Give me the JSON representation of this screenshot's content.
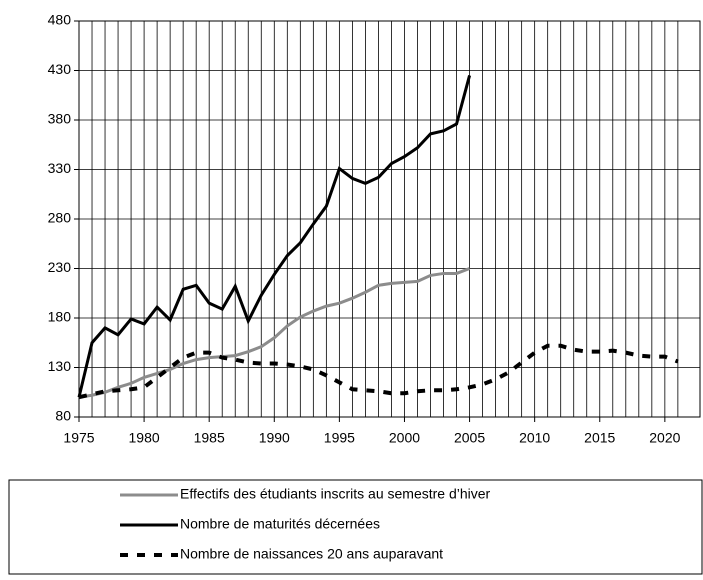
{
  "chart_data": {
    "type": "line",
    "x": [
      1975,
      1976,
      1977,
      1978,
      1979,
      1980,
      1981,
      1982,
      1983,
      1984,
      1985,
      1986,
      1987,
      1988,
      1989,
      1990,
      1991,
      1992,
      1993,
      1994,
      1995,
      1996,
      1997,
      1998,
      1999,
      2000,
      2001,
      2002,
      2003,
      2004,
      2005,
      2006,
      2007,
      2008,
      2009,
      2010,
      2011,
      2012,
      2013,
      2014,
      2015,
      2016,
      2017,
      2018,
      2019,
      2020,
      2021
    ],
    "series": [
      {
        "name": "Effectifs des étudiants inscrits au semestre d’hiver",
        "color": "#8c8c8c",
        "style": "solid",
        "values": [
          100,
          102,
          105,
          110,
          114,
          120,
          124,
          128,
          134,
          138,
          140,
          141,
          142,
          146,
          151,
          160,
          172,
          181,
          187,
          192,
          195,
          200,
          206,
          213,
          215,
          216,
          217,
          223,
          225,
          225,
          230,
          null,
          null,
          null,
          null,
          null,
          null,
          null,
          null,
          null,
          null,
          null,
          null,
          null,
          null,
          null,
          null
        ]
      },
      {
        "name": "Nombre de maturités décernées",
        "color": "#000000",
        "style": "solid",
        "values": [
          100,
          155,
          170,
          163,
          179,
          174,
          191,
          178,
          209,
          213,
          195,
          189,
          212,
          177,
          203,
          224,
          243,
          256,
          275,
          293,
          331,
          321,
          316,
          322,
          336,
          343,
          352,
          366,
          369,
          376,
          425,
          null,
          null,
          null,
          null,
          null,
          null,
          null,
          null,
          null,
          null,
          null,
          null,
          null,
          null,
          null,
          null
        ]
      },
      {
        "name": "Nombre de naissances 20 ans auparavant",
        "color": "#000000",
        "style": "dashed",
        "values": [
          100,
          103,
          106,
          107,
          108,
          110,
          120,
          130,
          140,
          145,
          145,
          140,
          138,
          135,
          134,
          134,
          133,
          131,
          128,
          122,
          115,
          108,
          107,
          106,
          104,
          104,
          106,
          107,
          107,
          108,
          110,
          113,
          118,
          125,
          135,
          145,
          152,
          152,
          148,
          146,
          146,
          147,
          145,
          142,
          141,
          141,
          136
        ]
      }
    ],
    "xlim": [
      1975,
      2022.7
    ],
    "xticks": [
      1975,
      1980,
      1985,
      1990,
      1995,
      2000,
      2005,
      2010,
      2015,
      2020
    ],
    "ylim": [
      80,
      480
    ],
    "yticks": [
      80,
      130,
      180,
      230,
      280,
      330,
      380,
      430,
      480
    ],
    "grid": true
  }
}
